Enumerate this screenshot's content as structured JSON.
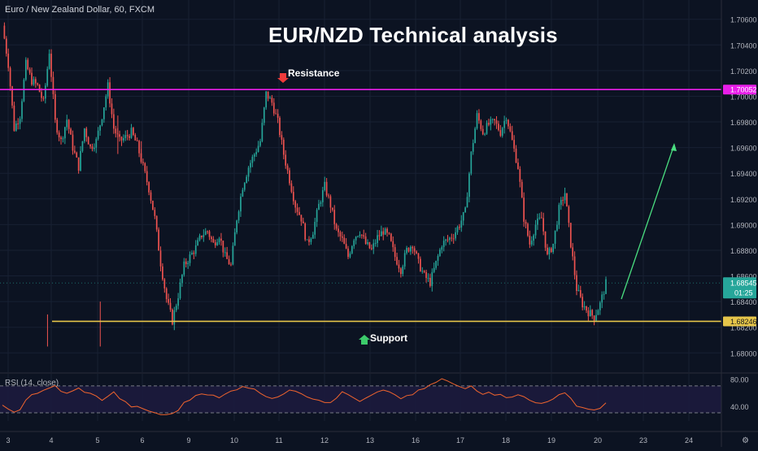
{
  "header": {
    "symbol_label": "Euro / New Zealand Dollar, 60, FXCM",
    "title": "EUR/NZD Technical analysis"
  },
  "annotations": {
    "resistance_label": "Resistance",
    "support_label": "Support"
  },
  "rsi": {
    "label": "RSI (14, close)",
    "ticks": [
      "80.00",
      "40.00"
    ]
  },
  "price_tags": {
    "resistance": "1.70052",
    "current": "1.68545",
    "countdown": "01:25",
    "support": "1.68246"
  },
  "colors": {
    "background": "#0c1322",
    "up": "#26a69a",
    "down": "#ef5350",
    "resistance": "#e91ee9",
    "support": "#e6c54a",
    "arrow": "#4ade80",
    "rsi_line": "#f0642e",
    "rsi_band": "#1c1b3d"
  },
  "chart_data": {
    "type": "candlestick",
    "title": "EUR/NZD Technical analysis",
    "ylim": [
      1.6785,
      1.7075
    ],
    "y_ticks": [
      1.706,
      1.704,
      1.702,
      1.7,
      1.698,
      1.696,
      1.694,
      1.692,
      1.69,
      1.688,
      1.686,
      1.684,
      1.682,
      1.68
    ],
    "y_tick_labels": [
      "1.70600",
      "1.70400",
      "1.70200",
      "1.70000",
      "1.69800",
      "1.69600",
      "1.69400",
      "1.69200",
      "1.69000",
      "1.68800",
      "1.68600",
      "1.68400",
      "1.68200",
      "1.68000"
    ],
    "x_tick_labels": [
      "3",
      "4",
      "5",
      "6",
      "9",
      "10",
      "11",
      "12",
      "13",
      "16",
      "17",
      "18",
      "19",
      "20",
      "23",
      "24"
    ],
    "resistance_level": 1.70052,
    "support_level": 1.68246,
    "last_price": 1.68545,
    "price_path": [
      1.7055,
      1.7025,
      1.6975,
      1.6985,
      1.7025,
      1.7012,
      1.7008,
      1.6995,
      1.7035,
      1.698,
      1.6965,
      1.6982,
      1.696,
      1.6945,
      1.6975,
      1.696,
      1.6965,
      1.6985,
      1.7008,
      1.6975,
      1.6965,
      1.6968,
      1.6972,
      1.6962,
      1.6945,
      1.6928,
      1.6905,
      1.687,
      1.6842,
      1.6825,
      1.6845,
      1.6868,
      1.6875,
      1.6882,
      1.6892,
      1.6895,
      1.6885,
      1.6892,
      1.6875,
      1.6868,
      1.6905,
      1.693,
      1.6945,
      1.6955,
      1.6965,
      1.7002,
      1.6995,
      1.698,
      1.6955,
      1.6935,
      1.6915,
      1.6905,
      1.6885,
      1.6895,
      1.6915,
      1.693,
      1.6915,
      1.6895,
      1.6888,
      1.6875,
      1.689,
      1.6895,
      1.6885,
      1.688,
      1.689,
      1.6895,
      1.689,
      1.6875,
      1.6865,
      1.688,
      1.6885,
      1.687,
      1.686,
      1.6855,
      1.687,
      1.6885,
      1.6888,
      1.6892,
      1.69,
      1.691,
      1.6955,
      1.6985,
      1.6972,
      1.6978,
      1.698,
      1.6972,
      1.6985,
      1.6965,
      1.6945,
      1.6905,
      1.6885,
      1.69,
      1.6905,
      1.6875,
      1.6885,
      1.6912,
      1.6925,
      1.6885,
      1.685,
      1.6838,
      1.6832,
      1.6828,
      1.6838,
      1.6854
    ],
    "rsi_values": [
      40,
      34,
      30,
      36,
      50,
      57,
      60,
      62,
      66,
      70,
      63,
      58,
      62,
      66,
      62,
      58,
      54,
      50,
      55,
      60,
      52,
      45,
      40,
      38,
      35,
      33,
      30,
      28,
      26,
      29,
      35,
      44,
      50,
      56,
      60,
      58,
      55,
      52,
      57,
      62,
      66,
      70,
      68,
      64,
      60,
      56,
      52,
      55,
      58,
      62,
      63,
      60,
      55,
      52,
      50,
      46,
      47,
      53,
      60,
      57,
      52,
      48,
      50,
      56,
      60,
      63,
      60,
      55,
      52,
      55,
      58,
      62,
      66,
      70,
      76,
      80,
      77,
      72,
      68,
      66,
      70,
      64,
      59,
      62,
      58,
      56,
      54,
      55,
      58,
      53,
      48,
      45,
      44,
      48,
      52,
      56,
      58,
      51,
      42,
      38,
      36,
      34,
      38,
      44
    ],
    "rsi_ylim": [
      18,
      88
    ],
    "rsi_levels": [
      70,
      30
    ]
  }
}
